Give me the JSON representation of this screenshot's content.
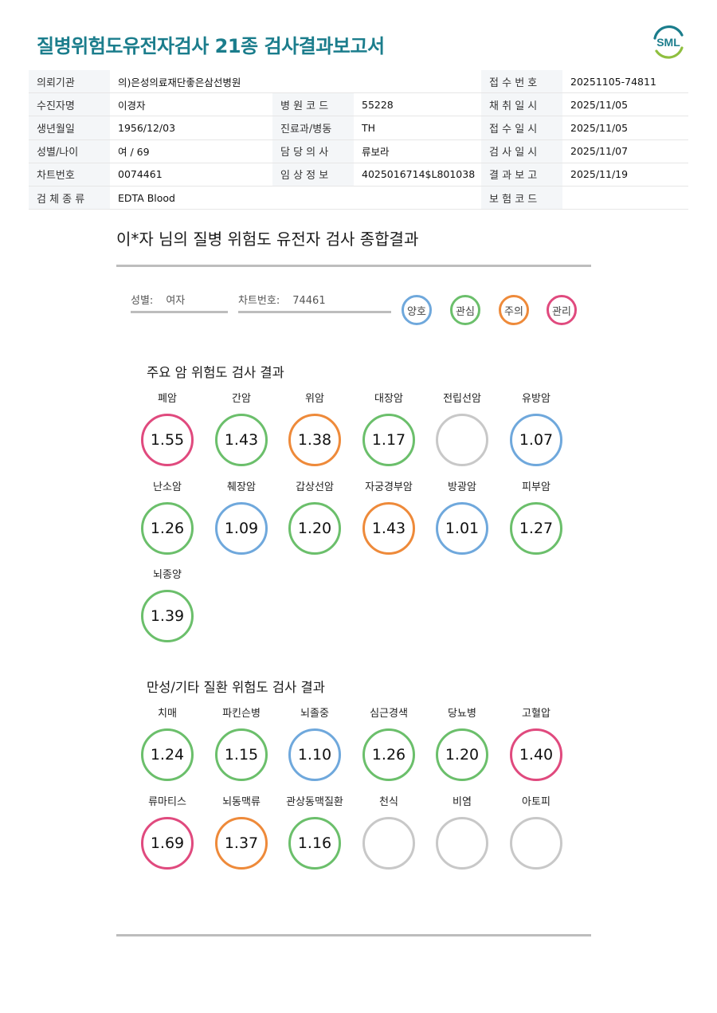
{
  "header": {
    "title": "질병위험도유전자검사 21종 검사결과보고서",
    "logo_text": "SML"
  },
  "info_rows": [
    [
      {
        "label": "의뢰기관",
        "value": "의)은성의료재단좋은삼선병원"
      },
      null,
      {
        "label": "접 수 번 호",
        "value": "20251105-74811"
      }
    ],
    [
      {
        "label": "수진자명",
        "value": "이경자"
      },
      {
        "label": "병 원 코 드",
        "value": "55228"
      },
      {
        "label": "채 취 일 시",
        "value": "2025/11/05"
      }
    ],
    [
      {
        "label": "생년월일",
        "value": "1956/12/03"
      },
      {
        "label": "진료과/병동",
        "value": "TH"
      },
      {
        "label": "접 수 일 시",
        "value": "2025/11/05"
      }
    ],
    [
      {
        "label": "성별/나이",
        "value": "여 / 69"
      },
      {
        "label": "담 당 의 사",
        "value": "류보라"
      },
      {
        "label": "검 사 일 시",
        "value": "2025/11/07"
      }
    ],
    [
      {
        "label": "차트번호",
        "value": "0074461"
      },
      {
        "label": "임 상 정 보",
        "value": "4025016714$L801038"
      },
      {
        "label": "결 과 보 고",
        "value": "2025/11/19"
      }
    ],
    [
      {
        "label": "검 체 종 류",
        "value": "EDTA Blood"
      },
      null,
      {
        "label": "보 험 코 드",
        "value": ""
      }
    ]
  ],
  "summary": {
    "title": "이*자 님의 질병 위험도 유전자 검사 종합결과",
    "gender_label": "성별:",
    "gender_value": "여자",
    "chart_label": "차트번호:",
    "chart_value": "74461"
  },
  "legend": [
    {
      "label": "양호",
      "color": "#6fa8dc"
    },
    {
      "label": "관심",
      "color": "#6bbf6b"
    },
    {
      "label": "주의",
      "color": "#ee8a3a"
    },
    {
      "label": "관리",
      "color": "#e04a7e"
    }
  ],
  "cancer": {
    "title": "주요 암 위험도 검사 결과",
    "items": [
      {
        "name": "폐암",
        "value": "1.55",
        "status": "관리"
      },
      {
        "name": "간암",
        "value": "1.43",
        "status": "관심"
      },
      {
        "name": "위암",
        "value": "1.38",
        "status": "주의"
      },
      {
        "name": "대장암",
        "value": "1.17",
        "status": "관심"
      },
      {
        "name": "전립선암",
        "value": "",
        "status": "none"
      },
      {
        "name": "유방암",
        "value": "1.07",
        "status": "양호"
      },
      {
        "name": "난소암",
        "value": "1.26",
        "status": "관심"
      },
      {
        "name": "췌장암",
        "value": "1.09",
        "status": "양호"
      },
      {
        "name": "갑상선암",
        "value": "1.20",
        "status": "관심"
      },
      {
        "name": "자궁경부암",
        "value": "1.43",
        "status": "주의"
      },
      {
        "name": "방광암",
        "value": "1.01",
        "status": "양호"
      },
      {
        "name": "피부암",
        "value": "1.27",
        "status": "관심"
      },
      {
        "name": "뇌종양",
        "value": "1.39",
        "status": "관심"
      }
    ]
  },
  "chronic": {
    "title": "만성/기타 질환 위험도 검사 결과",
    "items": [
      {
        "name": "치매",
        "value": "1.24",
        "status": "관심"
      },
      {
        "name": "파킨슨병",
        "value": "1.15",
        "status": "관심"
      },
      {
        "name": "뇌졸중",
        "value": "1.10",
        "status": "양호"
      },
      {
        "name": "심근경색",
        "value": "1.26",
        "status": "관심"
      },
      {
        "name": "당뇨병",
        "value": "1.20",
        "status": "관심"
      },
      {
        "name": "고혈압",
        "value": "1.40",
        "status": "관리"
      },
      {
        "name": "류마티스",
        "value": "1.69",
        "status": "관리"
      },
      {
        "name": "뇌동맥류",
        "value": "1.37",
        "status": "주의"
      },
      {
        "name": "관상동맥질환",
        "value": "1.16",
        "status": "관심"
      },
      {
        "name": "천식",
        "value": "",
        "status": "none"
      },
      {
        "name": "비염",
        "value": "",
        "status": "none"
      },
      {
        "name": "아토피",
        "value": "",
        "status": "none"
      }
    ]
  },
  "colors": {
    "title": "#1b7d8c",
    "양호": "#6fa8dc",
    "관심": "#6bbf6b",
    "주의": "#ee8a3a",
    "관리": "#e04a7e",
    "none": "#c8c8c8"
  }
}
